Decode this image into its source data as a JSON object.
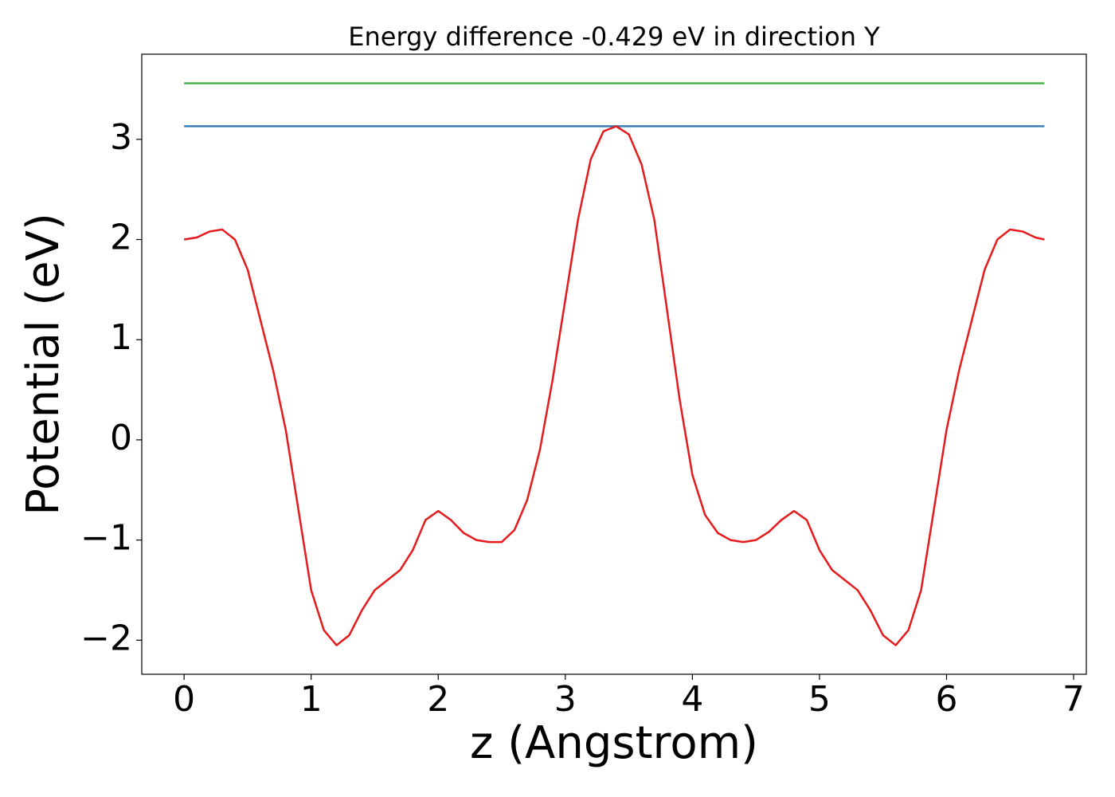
{
  "chart_data": {
    "type": "line",
    "title": "Energy difference -0.429 eV in direction Y",
    "xlabel": "z (Angstrom)",
    "ylabel": "Potential (eV)",
    "xlim": [
      -0.333,
      7.1
    ],
    "ylim": [
      -2.34,
      3.85
    ],
    "xticks": [
      0,
      1,
      2,
      3,
      4,
      5,
      6,
      7
    ],
    "yticks": [
      {
        "value": -2,
        "label": "−2"
      },
      {
        "value": -1,
        "label": "−1"
      },
      0,
      1,
      2,
      3
    ],
    "series": [
      {
        "color": "#4daf4a",
        "x": [
          0,
          6.77
        ],
        "values": [
          3.56,
          3.56
        ]
      },
      {
        "color": "#377eb8",
        "x": [
          0,
          6.77
        ],
        "values": [
          3.131,
          3.131
        ]
      },
      {
        "color": "#e41a1c",
        "x": [
          0,
          0.1,
          0.2,
          0.3,
          0.4,
          0.5,
          0.6,
          0.7,
          0.8,
          0.9,
          1.0,
          1.1,
          1.2,
          1.3,
          1.4,
          1.5,
          1.6,
          1.7,
          1.8,
          1.9,
          2.0,
          2.1,
          2.2,
          2.3,
          2.4,
          2.5,
          2.6,
          2.7,
          2.8,
          2.9,
          3.0,
          3.1,
          3.2,
          3.3,
          3.4,
          3.5,
          3.6,
          3.7,
          3.8,
          3.9,
          4.0,
          4.1,
          4.2,
          4.3,
          4.4,
          4.5,
          4.6,
          4.7,
          4.8,
          4.9,
          5.0,
          5.1,
          5.2,
          5.3,
          5.4,
          5.5,
          5.6,
          5.7,
          5.8,
          5.9,
          6.0,
          6.1,
          6.2,
          6.3,
          6.4,
          6.5,
          6.6,
          6.7,
          6.77
        ],
        "values": [
          2.0,
          2.02,
          2.08,
          2.1,
          2.0,
          1.7,
          1.2,
          0.7,
          0.1,
          -0.7,
          -1.5,
          -1.9,
          -2.05,
          -1.95,
          -1.7,
          -1.5,
          -1.4,
          -1.3,
          -1.1,
          -0.8,
          -0.71,
          -0.8,
          -0.93,
          -1.0,
          -1.02,
          -1.02,
          -0.9,
          -0.6,
          -0.1,
          0.6,
          1.4,
          2.2,
          2.8,
          3.08,
          3.13,
          3.05,
          2.75,
          2.2,
          1.3,
          0.4,
          -0.35,
          -0.75,
          -0.93,
          -1.0,
          -1.02,
          -1.0,
          -0.92,
          -0.8,
          -0.71,
          -0.8,
          -1.1,
          -1.3,
          -1.4,
          -1.5,
          -1.7,
          -1.95,
          -2.05,
          -1.9,
          -1.5,
          -0.7,
          0.1,
          0.7,
          1.2,
          1.7,
          2.0,
          2.1,
          2.08,
          2.02,
          2.0
        ]
      }
    ]
  }
}
